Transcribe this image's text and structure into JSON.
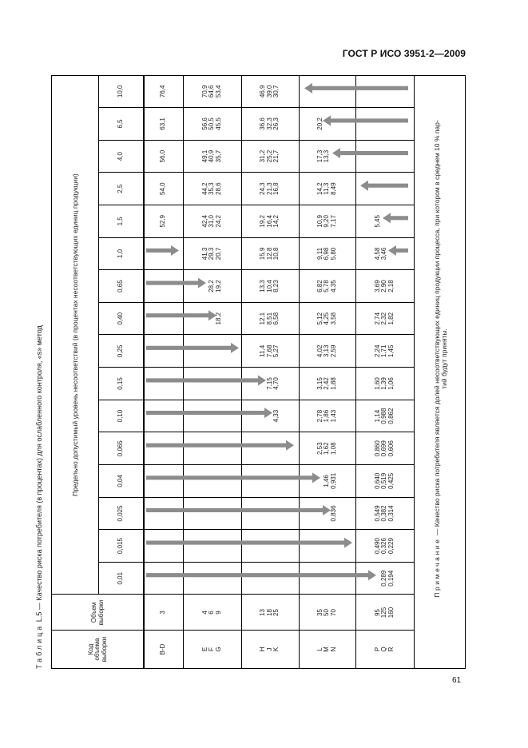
{
  "header": {
    "doc_id": "ГОСТ Р ИСО 3951-2—2009"
  },
  "page_number": "61",
  "title": {
    "label": "Таблица",
    "number": "L.5",
    "text": "— Качество риска потребителя (в процентах) для ослабленного контроля, «s» метод"
  },
  "table": {
    "code_header": "Код объема выборки",
    "sample_header": "Объем выборки",
    "group_header": "Предельно допустимый уровень несоответствий (в процентах несоответствующих единиц продукции)",
    "columns": [
      "0,01",
      "0,015",
      "0,025",
      "0,04",
      "0,065",
      "0,10",
      "0,15",
      "0,25",
      "0,40",
      "0,65",
      "1,0",
      "1,5",
      "2,5",
      "4,0",
      "6,5",
      "10,0"
    ],
    "rows": [
      {
        "code": [
          "B-D"
        ],
        "sample": [
          "3"
        ],
        "cells": [
          [
            ""
          ],
          [
            ""
          ],
          [
            ""
          ],
          [
            ""
          ],
          [
            ""
          ],
          [
            ""
          ],
          [
            ""
          ],
          [
            ""
          ],
          [
            ""
          ],
          [
            ""
          ],
          [
            ""
          ],
          [
            "52,9"
          ],
          [
            "54,0"
          ],
          [
            "56,0"
          ],
          [
            "63,1"
          ],
          [
            "76,4"
          ]
        ]
      },
      {
        "code": [
          "E",
          "F",
          "G"
        ],
        "sample": [
          "4",
          "6",
          "9"
        ],
        "cells": [
          [
            "",
            "",
            ""
          ],
          [
            "",
            "",
            ""
          ],
          [
            "",
            "",
            ""
          ],
          [
            "",
            "",
            ""
          ],
          [
            "",
            "",
            ""
          ],
          [
            "",
            "",
            ""
          ],
          [
            "",
            "",
            ""
          ],
          [
            "",
            "",
            ""
          ],
          [
            "",
            "",
            "18,2"
          ],
          [
            "",
            "28,2",
            "19,2"
          ],
          [
            "41,3",
            "29,3",
            "20,7"
          ],
          [
            "42,4",
            "31,0",
            "24,2"
          ],
          [
            "44,2",
            "35,3",
            "28,6"
          ],
          [
            "49,1",
            "40,9",
            "35,7"
          ],
          [
            "56,6",
            "50,5",
            "45,5"
          ],
          [
            "70,9",
            "64,6",
            "53,4"
          ]
        ]
      },
      {
        "code": [
          "H",
          "J",
          "K"
        ],
        "sample": [
          "13",
          "18",
          "25"
        ],
        "cells": [
          [
            "",
            "",
            ""
          ],
          [
            "",
            "",
            ""
          ],
          [
            "",
            "",
            ""
          ],
          [
            "",
            "",
            ""
          ],
          [
            "",
            "",
            ""
          ],
          [
            "",
            "",
            "4,33"
          ],
          [
            "",
            "7,15",
            "4,70"
          ],
          [
            "11,4",
            "7,68",
            "5,27"
          ],
          [
            "12,1",
            "8,51",
            "6,58"
          ],
          [
            "13,3",
            "10,4",
            "8,23"
          ],
          [
            "15,9",
            "12,8",
            "10,8"
          ],
          [
            "19,2",
            "16,4",
            "14,2"
          ],
          [
            "24,3",
            "21,3",
            "16,8"
          ],
          [
            "31,2",
            "25,2",
            "21,7"
          ],
          [
            "36,6",
            "32,3",
            "26,3"
          ],
          [
            "46,9",
            "39,0",
            "30,7"
          ]
        ]
      },
      {
        "code": [
          "L",
          "M",
          "N"
        ],
        "sample": [
          "35",
          "50",
          "70"
        ],
        "cells": [
          [
            "",
            "",
            ""
          ],
          [
            "",
            "",
            ""
          ],
          [
            "",
            "",
            "0,836"
          ],
          [
            "",
            "1,46",
            "0,931"
          ],
          [
            "2,53",
            "1,62",
            "1,08"
          ],
          [
            "2,78",
            "1,86",
            "1,43"
          ],
          [
            "3,15",
            "2,42",
            "1,88"
          ],
          [
            "4,02",
            "3,13",
            "2,59"
          ],
          [
            "5,12",
            "4,25",
            "3,58"
          ],
          [
            "6,82",
            "5,78",
            "4,35"
          ],
          [
            "9,11",
            "6,98",
            "5,80"
          ],
          [
            "10,9",
            "9,20",
            "7,17"
          ],
          [
            "14,2",
            "11,3",
            "8,49"
          ],
          [
            "17,3",
            "13,3",
            ""
          ],
          [
            "20,2",
            "",
            ""
          ],
          [
            "",
            "",
            ""
          ]
        ]
      },
      {
        "code": [
          "P",
          "Q",
          "R"
        ],
        "sample": [
          "95",
          "125",
          "160"
        ],
        "cells": [
          [
            "",
            "0,289",
            "0,194"
          ],
          [
            "0,490",
            "0,326",
            "0,229"
          ],
          [
            "0,549",
            "0,382",
            "0,314"
          ],
          [
            "0,640",
            "0,519",
            "0,425"
          ],
          [
            "0,860",
            "0,699",
            "0,606"
          ],
          [
            "1,14",
            "0,988",
            "0,862"
          ],
          [
            "1,60",
            "1,39",
            "1,06"
          ],
          [
            "2,24",
            "1,71",
            "1,45"
          ],
          [
            "2,74",
            "2,32",
            "1,82"
          ],
          [
            "3,69",
            "2,90",
            "2,18"
          ],
          [
            "4,58",
            "3,46",
            ""
          ],
          [
            "5,45",
            "",
            ""
          ],
          [
            "",
            "",
            ""
          ],
          [
            "",
            "",
            ""
          ],
          [
            "",
            "",
            ""
          ],
          [
            "",
            "",
            ""
          ]
        ]
      }
    ],
    "arrows": [
      {
        "column": "0,01",
        "direction": "down"
      },
      {
        "column": "0,015",
        "direction": "down"
      },
      {
        "column": "0,025",
        "direction": "down"
      },
      {
        "column": "0,04",
        "direction": "down"
      },
      {
        "column": "0,065",
        "direction": "down"
      },
      {
        "column": "0,10",
        "direction": "down"
      },
      {
        "column": "0,15",
        "direction": "down"
      },
      {
        "column": "0,25",
        "direction": "down"
      },
      {
        "column": "0,40",
        "direction": "down"
      },
      {
        "column": "0,65",
        "direction": "down"
      },
      {
        "column": "1,0",
        "direction": "down"
      },
      {
        "column": "1,0",
        "direction": "up"
      },
      {
        "column": "1,5",
        "direction": "up"
      },
      {
        "column": "2,5",
        "direction": "up"
      },
      {
        "column": "4,0",
        "direction": "up"
      },
      {
        "column": "6,5",
        "direction": "up"
      },
      {
        "column": "10,0",
        "direction": "up"
      }
    ],
    "arrow_color": "#8c8c8c"
  },
  "note": {
    "label": "Примечание",
    "line1": " — Качество риска потребителя является долей несоответствующих единиц продукции процесса, при котором в среднем 10 % пар-",
    "line2": "тий будут приняты."
  }
}
